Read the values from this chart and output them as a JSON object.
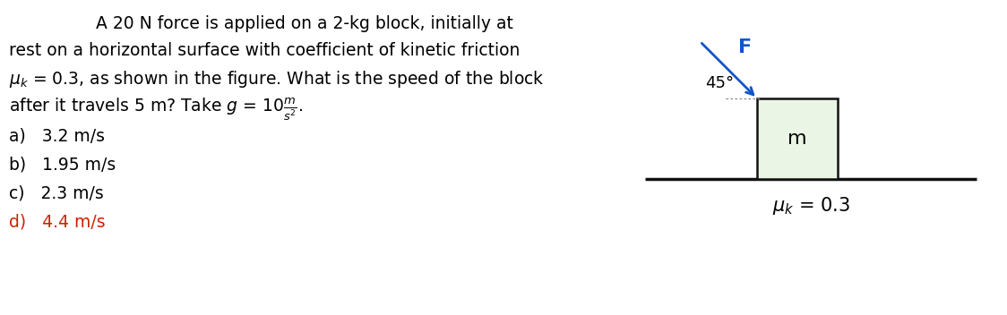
{
  "background_color": "#ffffff",
  "text_color": "#000000",
  "problem_line1": "A 20 N force is applied on a 2-kg block, initially at",
  "problem_line2": "rest on a horizontal surface with coefficient of kinetic friction",
  "problem_line3": " = 0.3, as shown in the figure. What is the speed of the block",
  "problem_line4": "after it travels 5 m? Take ",
  "options": [
    "a)   3.2 m/s",
    "b)   1.95 m/s",
    "c)   2.3 m/s",
    "d)   4.4 m/s"
  ],
  "option_colors": [
    "#000000",
    "#000000",
    "#000000",
    "#cc2200"
  ],
  "diagram_box_fill": "#eaf5e5",
  "diagram_box_edge": "#111111",
  "diagram_line_color": "#111111",
  "diagram_arrow_color": "#1155cc",
  "angle_label": "45°",
  "F_label": "F",
  "m_label": "m",
  "mu_label": "μ",
  "mu_k_label": "k",
  "mu_value": " = 0.3",
  "text_fontsize": 13.5,
  "option_fontsize": 13.5,
  "diagram_fontsize": 13
}
